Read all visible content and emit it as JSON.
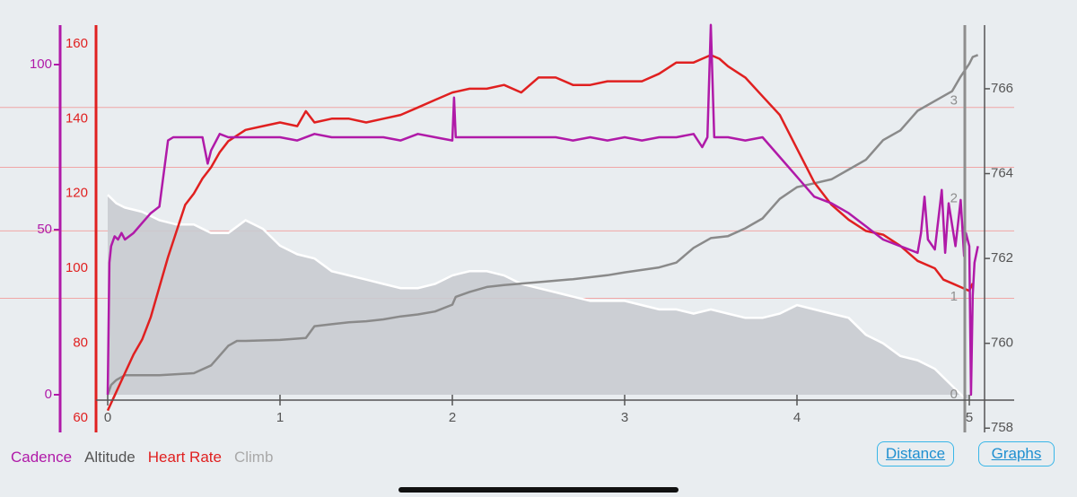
{
  "chart_data": {
    "type": "line",
    "xlabel": "Distance",
    "x_ticks": [
      "0",
      "1",
      "2",
      "3",
      "4",
      "5"
    ],
    "xlim": [
      0,
      5
    ],
    "axes": {
      "cadence": {
        "color": "#b01aa8",
        "ticks": [
          "0",
          "50",
          "100"
        ],
        "ylim": [
          0,
          100
        ]
      },
      "heart_rate": {
        "color": "#e02020",
        "ticks": [
          "60",
          "80",
          "100",
          "120",
          "140",
          "160"
        ],
        "ylim": [
          60,
          165
        ]
      },
      "climb": {
        "color": "#8e8e8e",
        "ticks": [
          "0",
          "1",
          "2",
          "3"
        ],
        "ylim": [
          0,
          3.5
        ]
      },
      "altitude": {
        "color": "#555555",
        "ticks": [
          "758",
          "760",
          "762",
          "764",
          "766"
        ],
        "ylim": [
          757.9,
          767.5
        ]
      }
    },
    "series": [
      {
        "name": "Altitude",
        "axis": "altitude",
        "color": "#ffffff",
        "fill": "#c9cbd0",
        "x": [
          0,
          0.05,
          0.1,
          0.2,
          0.3,
          0.4,
          0.5,
          0.6,
          0.7,
          0.8,
          0.9,
          1.0,
          1.1,
          1.2,
          1.3,
          1.4,
          1.5,
          1.6,
          1.7,
          1.8,
          1.9,
          2.0,
          2.1,
          2.2,
          2.3,
          2.4,
          2.5,
          2.6,
          2.7,
          2.8,
          2.9,
          3.0,
          3.1,
          3.2,
          3.3,
          3.4,
          3.5,
          3.6,
          3.7,
          3.8,
          3.9,
          4.0,
          4.1,
          4.2,
          4.3,
          4.4,
          4.5,
          4.6,
          4.7,
          4.8,
          4.9,
          5.0
        ],
        "y": [
          763.5,
          763.3,
          763.2,
          763.1,
          762.9,
          762.8,
          762.8,
          762.6,
          762.6,
          762.9,
          762.7,
          762.3,
          762.1,
          762.0,
          761.7,
          761.6,
          761.5,
          761.4,
          761.3,
          761.3,
          761.4,
          761.6,
          761.7,
          761.7,
          761.6,
          761.4,
          761.3,
          761.2,
          761.1,
          761.0,
          761.0,
          761.0,
          760.9,
          760.8,
          760.8,
          760.7,
          760.8,
          760.7,
          760.6,
          760.6,
          760.7,
          760.9,
          760.8,
          760.7,
          760.6,
          760.2,
          760.0,
          759.7,
          759.6,
          759.4,
          759.0,
          758.6
        ]
      },
      {
        "name": "Climb",
        "axis": "climb",
        "color": "#8a8a8a",
        "x": [
          0,
          0.02,
          0.05,
          0.1,
          0.3,
          0.5,
          0.6,
          0.7,
          0.75,
          0.8,
          1.0,
          1.15,
          1.2,
          1.3,
          1.4,
          1.5,
          1.6,
          1.7,
          1.8,
          1.9,
          2.0,
          2.02,
          2.1,
          2.2,
          2.3,
          2.5,
          2.7,
          2.9,
          3.0,
          3.2,
          3.3,
          3.4,
          3.5,
          3.6,
          3.7,
          3.8,
          3.85,
          3.9,
          4.0,
          4.1,
          4.2,
          4.3,
          4.4,
          4.5,
          4.6,
          4.7,
          4.8,
          4.9,
          4.95,
          5.0,
          5.02,
          5.05
        ],
        "y": [
          0,
          0.1,
          0.15,
          0.2,
          0.2,
          0.22,
          0.3,
          0.5,
          0.55,
          0.55,
          0.56,
          0.58,
          0.7,
          0.72,
          0.74,
          0.75,
          0.77,
          0.8,
          0.82,
          0.85,
          0.92,
          1.0,
          1.05,
          1.1,
          1.12,
          1.15,
          1.18,
          1.22,
          1.25,
          1.3,
          1.35,
          1.5,
          1.6,
          1.62,
          1.7,
          1.8,
          1.9,
          2.0,
          2.12,
          2.16,
          2.2,
          2.3,
          2.4,
          2.6,
          2.7,
          2.9,
          3.0,
          3.1,
          3.25,
          3.38,
          3.45,
          3.47
        ]
      },
      {
        "name": "Heart Rate",
        "axis": "heart_rate",
        "color": "#e02020",
        "x": [
          0,
          0.05,
          0.1,
          0.15,
          0.2,
          0.25,
          0.3,
          0.35,
          0.4,
          0.45,
          0.5,
          0.55,
          0.6,
          0.65,
          0.7,
          0.8,
          0.9,
          1.0,
          1.1,
          1.15,
          1.2,
          1.3,
          1.4,
          1.5,
          1.6,
          1.7,
          1.8,
          1.9,
          2.0,
          2.1,
          2.2,
          2.3,
          2.4,
          2.5,
          2.6,
          2.7,
          2.8,
          2.9,
          3.0,
          3.1,
          3.2,
          3.3,
          3.4,
          3.45,
          3.5,
          3.55,
          3.6,
          3.7,
          3.8,
          3.9,
          4.0,
          4.1,
          4.2,
          4.3,
          4.4,
          4.5,
          4.6,
          4.7,
          4.8,
          4.85,
          4.9,
          4.95,
          5.0,
          5.02
        ],
        "y": [
          62,
          67,
          72,
          77,
          81,
          87,
          95,
          103,
          110,
          117,
          120,
          124,
          127,
          131,
          134,
          137,
          138,
          139,
          138,
          142,
          139,
          140,
          140,
          139,
          140,
          141,
          143,
          145,
          147,
          148,
          148,
          149,
          147,
          151,
          151,
          149,
          149,
          150,
          150,
          150,
          152,
          155,
          155,
          156,
          157,
          156,
          154,
          151,
          146,
          141,
          132,
          123,
          117,
          113,
          110,
          109,
          106,
          102,
          100,
          97,
          96,
          95,
          94,
          96
        ]
      },
      {
        "name": "Cadence",
        "axis": "cadence",
        "color": "#b01aa8",
        "x": [
          0,
          0.01,
          0.02,
          0.04,
          0.06,
          0.08,
          0.1,
          0.15,
          0.2,
          0.25,
          0.3,
          0.35,
          0.38,
          0.4,
          0.45,
          0.5,
          0.55,
          0.58,
          0.6,
          0.65,
          0.7,
          0.8,
          0.9,
          1.0,
          1.1,
          1.2,
          1.3,
          1.4,
          1.5,
          1.6,
          1.7,
          1.8,
          1.9,
          2.0,
          2.01,
          2.02,
          2.1,
          2.2,
          2.3,
          2.4,
          2.5,
          2.6,
          2.7,
          2.8,
          2.9,
          3.0,
          3.1,
          3.2,
          3.3,
          3.4,
          3.45,
          3.48,
          3.5,
          3.52,
          3.55,
          3.6,
          3.7,
          3.8,
          3.9,
          4.0,
          4.1,
          4.2,
          4.3,
          4.4,
          4.5,
          4.6,
          4.65,
          4.7,
          4.72,
          4.74,
          4.76,
          4.8,
          4.84,
          4.86,
          4.88,
          4.92,
          4.95,
          4.97,
          4.98,
          5.0,
          5.01,
          5.02,
          5.03,
          5.05
        ],
        "y": [
          0,
          40,
          45,
          48,
          47,
          49,
          47,
          49,
          52,
          55,
          57,
          77,
          78,
          78,
          78,
          78,
          78,
          70,
          74,
          79,
          78,
          78,
          78,
          78,
          77,
          79,
          78,
          78,
          78,
          78,
          77,
          79,
          78,
          77,
          90,
          78,
          78,
          78,
          78,
          78,
          78,
          78,
          77,
          78,
          77,
          78,
          77,
          78,
          78,
          79,
          75,
          78,
          112,
          78,
          78,
          78,
          77,
          78,
          72,
          66,
          60,
          58,
          55,
          51,
          47,
          45,
          44,
          43,
          49,
          60,
          47,
          44,
          62,
          43,
          58,
          45,
          59,
          42,
          49,
          45,
          0,
          30,
          40,
          45
        ]
      }
    ]
  },
  "legend": [
    {
      "label": "Cadence",
      "color": "#b01aa8"
    },
    {
      "label": "Altitude",
      "color": "#555555"
    },
    {
      "label": "Heart Rate",
      "color": "#e02020"
    },
    {
      "label": "Climb",
      "color": "#a9a9a9"
    }
  ],
  "buttons": {
    "distance": "Distance",
    "graphs": "Graphs"
  }
}
